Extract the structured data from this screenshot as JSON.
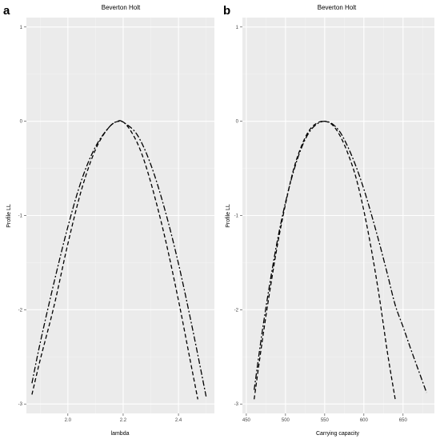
{
  "chart_data": [
    {
      "type": "line",
      "panel": "a",
      "title": "Beverton Holt",
      "xlabel": "lambda",
      "ylabel": "Profile LL",
      "xlim": [
        1.85,
        2.53
      ],
      "ylim": [
        -3.1,
        1.1
      ],
      "x_ticks": [
        2.0,
        2.2,
        2.4
      ],
      "x_tick_labels": [
        "2.0",
        "2.2",
        "2.4"
      ],
      "y_ticks": [
        -3,
        -2,
        -1,
        0,
        1
      ],
      "y_tick_labels": [
        "-3",
        "-2",
        "-1",
        "0",
        "1"
      ],
      "grid": true,
      "series": [
        {
          "linestyle": "dashed",
          "x": [
            1.87,
            1.9,
            1.95,
            2.0,
            2.05,
            2.1,
            2.15,
            2.19,
            2.22,
            2.26,
            2.3,
            2.35,
            2.4,
            2.44,
            2.47
          ],
          "y": [
            -2.9,
            -2.53,
            -1.96,
            -1.3,
            -0.72,
            -0.3,
            -0.06,
            0.0,
            -0.07,
            -0.29,
            -0.65,
            -1.22,
            -1.9,
            -2.5,
            -2.95
          ]
        },
        {
          "linestyle": "dashdot",
          "x": [
            1.87,
            1.9,
            1.95,
            2.0,
            2.05,
            2.1,
            2.15,
            2.18,
            2.2,
            2.25,
            2.3,
            2.35,
            2.4,
            2.45,
            2.5
          ],
          "y": [
            -2.78,
            -2.35,
            -1.71,
            -1.12,
            -0.62,
            -0.27,
            -0.06,
            0.0,
            -0.01,
            -0.14,
            -0.46,
            -0.93,
            -1.51,
            -2.19,
            -2.92
          ]
        }
      ]
    },
    {
      "type": "line",
      "panel": "b",
      "title": "Beverton Holt",
      "xlabel": "Carrying capacity",
      "ylabel": "Profile LL",
      "xlim": [
        445,
        690
      ],
      "ylim": [
        -3.1,
        1.1
      ],
      "x_ticks": [
        450,
        500,
        550,
        600,
        650
      ],
      "x_tick_labels": [
        "450",
        "500",
        "550",
        "600",
        "650"
      ],
      "y_ticks": [
        -3,
        -2,
        -1,
        0,
        1
      ],
      "y_tick_labels": [
        "-3",
        "-2",
        "-1",
        "0",
        "1"
      ],
      "grid": true,
      "series": [
        {
          "linestyle": "dashed",
          "x": [
            460,
            470,
            480,
            490,
            500,
            510,
            520,
            530,
            540,
            550,
            560,
            570,
            580,
            590,
            600,
            610,
            620,
            630,
            640
          ],
          "y": [
            -2.95,
            -2.35,
            -1.8,
            -1.3,
            -0.88,
            -0.52,
            -0.27,
            -0.1,
            -0.02,
            0.0,
            -0.04,
            -0.16,
            -0.35,
            -0.6,
            -0.95,
            -1.38,
            -1.88,
            -2.45,
            -2.95
          ]
        },
        {
          "linestyle": "dashdot",
          "x": [
            460,
            470,
            480,
            490,
            500,
            510,
            520,
            530,
            540,
            550,
            560,
            570,
            580,
            590,
            600,
            610,
            620,
            630,
            640,
            650,
            660,
            670,
            680
          ],
          "y": [
            -2.85,
            -2.25,
            -1.72,
            -1.25,
            -0.86,
            -0.54,
            -0.29,
            -0.12,
            -0.03,
            0.0,
            -0.03,
            -0.12,
            -0.28,
            -0.48,
            -0.72,
            -1.0,
            -1.3,
            -1.62,
            -1.95,
            -2.18,
            -2.42,
            -2.65,
            -2.88
          ]
        }
      ]
    }
  ]
}
